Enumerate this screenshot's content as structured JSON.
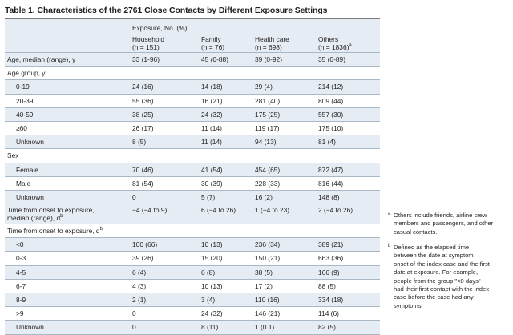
{
  "title": "Table 1. Characteristics of the 2761 Close Contacts by Different Exposure Settings",
  "header": {
    "group_label": "Exposure, No. (%)",
    "columns": [
      {
        "line1": "Household",
        "line2": "(n = 151)"
      },
      {
        "line1": "Family",
        "line2": "(n = 76)"
      },
      {
        "line1": "Health care",
        "line2": "(n = 698)"
      },
      {
        "line1": "Others",
        "line2": "(n = 1836)",
        "sup": "a"
      }
    ]
  },
  "rows": [
    {
      "label": "Age, median (range), y",
      "values": [
        "33 (1-96)",
        "45 (0-88)",
        "39 (0-92)",
        "35 (0-89)"
      ]
    },
    {
      "label": "Age group, y",
      "values": [
        "",
        "",
        "",
        ""
      ]
    },
    {
      "label": "0-19",
      "indent": true,
      "values": [
        "24 (16)",
        "14 (18)",
        "29 (4)",
        "214 (12)"
      ]
    },
    {
      "label": "20-39",
      "indent": true,
      "values": [
        "55 (36)",
        "16 (21)",
        "281 (40)",
        "809 (44)"
      ]
    },
    {
      "label": "40-59",
      "indent": true,
      "values": [
        "38 (25)",
        "24 (32)",
        "175 (25)",
        "557 (30)"
      ]
    },
    {
      "label": "≥60",
      "indent": true,
      "values": [
        "26 (17)",
        "11 (14)",
        "119 (17)",
        "175 (10)"
      ]
    },
    {
      "label": "Unknown",
      "indent": true,
      "values": [
        "8 (5)",
        "11 (14)",
        "94 (13)",
        "81 (4)"
      ]
    },
    {
      "label": "Sex",
      "values": [
        "",
        "",
        "",
        ""
      ]
    },
    {
      "label": "Female",
      "indent": true,
      "values": [
        "70 (46)",
        "41 (54)",
        "454 (65)",
        "872 (47)"
      ]
    },
    {
      "label": "Male",
      "indent": true,
      "values": [
        "81 (54)",
        "30 (39)",
        "228 (33)",
        "816 (44)"
      ]
    },
    {
      "label": "Unknown",
      "indent": true,
      "values": [
        "0",
        "5 (7)",
        "16 (2)",
        "148 (8)"
      ]
    },
    {
      "label": "Time from onset to exposure,",
      "label2": "median (range), d",
      "sup": "b",
      "values": [
        "−4 (−4 to 9)",
        "6 (−4 to 26)",
        "1 (−4 to 23)",
        "2 (−4 to 26)"
      ]
    },
    {
      "label": "Time from onset to exposure, d",
      "sup": "b",
      "values": [
        "",
        "",
        "",
        ""
      ]
    },
    {
      "label": "<0",
      "indent": true,
      "values": [
        "100 (66)",
        "10 (13)",
        "236 (34)",
        "389 (21)"
      ]
    },
    {
      "label": "0-3",
      "indent": true,
      "values": [
        "39 (26)",
        "15 (20)",
        "150 (21)",
        "663 (36)"
      ]
    },
    {
      "label": "4-5",
      "indent": true,
      "values": [
        "6 (4)",
        "6 (8)",
        "38 (5)",
        "166 (9)"
      ]
    },
    {
      "label": "6-7",
      "indent": true,
      "values": [
        "4 (3)",
        "10 (13)",
        "17 (2)",
        "88 (5)"
      ]
    },
    {
      "label": "8-9",
      "indent": true,
      "values": [
        "2 (1)",
        "3 (4)",
        "110 (16)",
        "334 (18)"
      ]
    },
    {
      "label": ">9",
      "indent": true,
      "values": [
        "0",
        "24 (32)",
        "146 (21)",
        "114 (6)"
      ]
    },
    {
      "label": "Unknown",
      "indent": true,
      "values": [
        "0",
        "8 (11)",
        "1 (0.1)",
        "82 (5)"
      ]
    }
  ],
  "footnotes": [
    {
      "mark": "a",
      "lines": [
        "Others include friends, airline crew",
        "members and passengers, and other",
        "casual contacts."
      ]
    },
    {
      "mark": "b",
      "lines": [
        "Defined as the elapsed time",
        "between the date at symptom",
        "onset of the index case and the first",
        "date at exposure. For example,",
        "people from the group \"<0 days\"",
        "had their first contact with the index",
        "case before the case had any",
        "symptoms."
      ]
    }
  ],
  "colors": {
    "shade": "#e5ecf3",
    "rule": "#a9b8c6",
    "text": "#231f20"
  }
}
